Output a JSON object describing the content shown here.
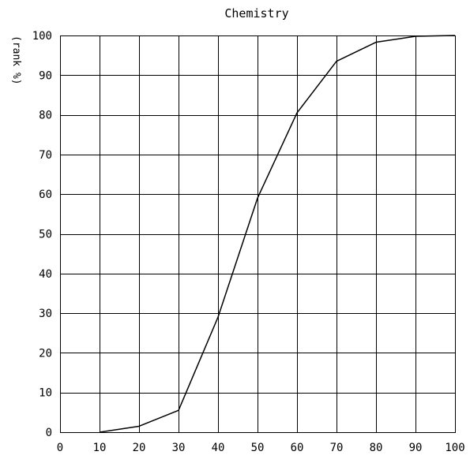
{
  "chart_data": {
    "type": "line",
    "title": "Chemistry",
    "xlabel": "",
    "ylabel": "(rank %)",
    "xlim": [
      0,
      100
    ],
    "ylim": [
      0,
      100
    ],
    "x_ticks": [
      0,
      10,
      20,
      30,
      40,
      50,
      60,
      70,
      80,
      90,
      100
    ],
    "y_ticks": [
      0,
      10,
      20,
      30,
      40,
      50,
      60,
      70,
      80,
      90,
      100
    ],
    "grid": true,
    "legend": "none",
    "line_color": "#000000",
    "series": [
      {
        "x": [
          10,
          20,
          30,
          40,
          50,
          60,
          70,
          80,
          90,
          100
        ],
        "y": [
          0,
          1.5,
          5.5,
          29,
          59,
          80.5,
          93.5,
          98.3,
          99.8,
          100
        ]
      }
    ]
  }
}
